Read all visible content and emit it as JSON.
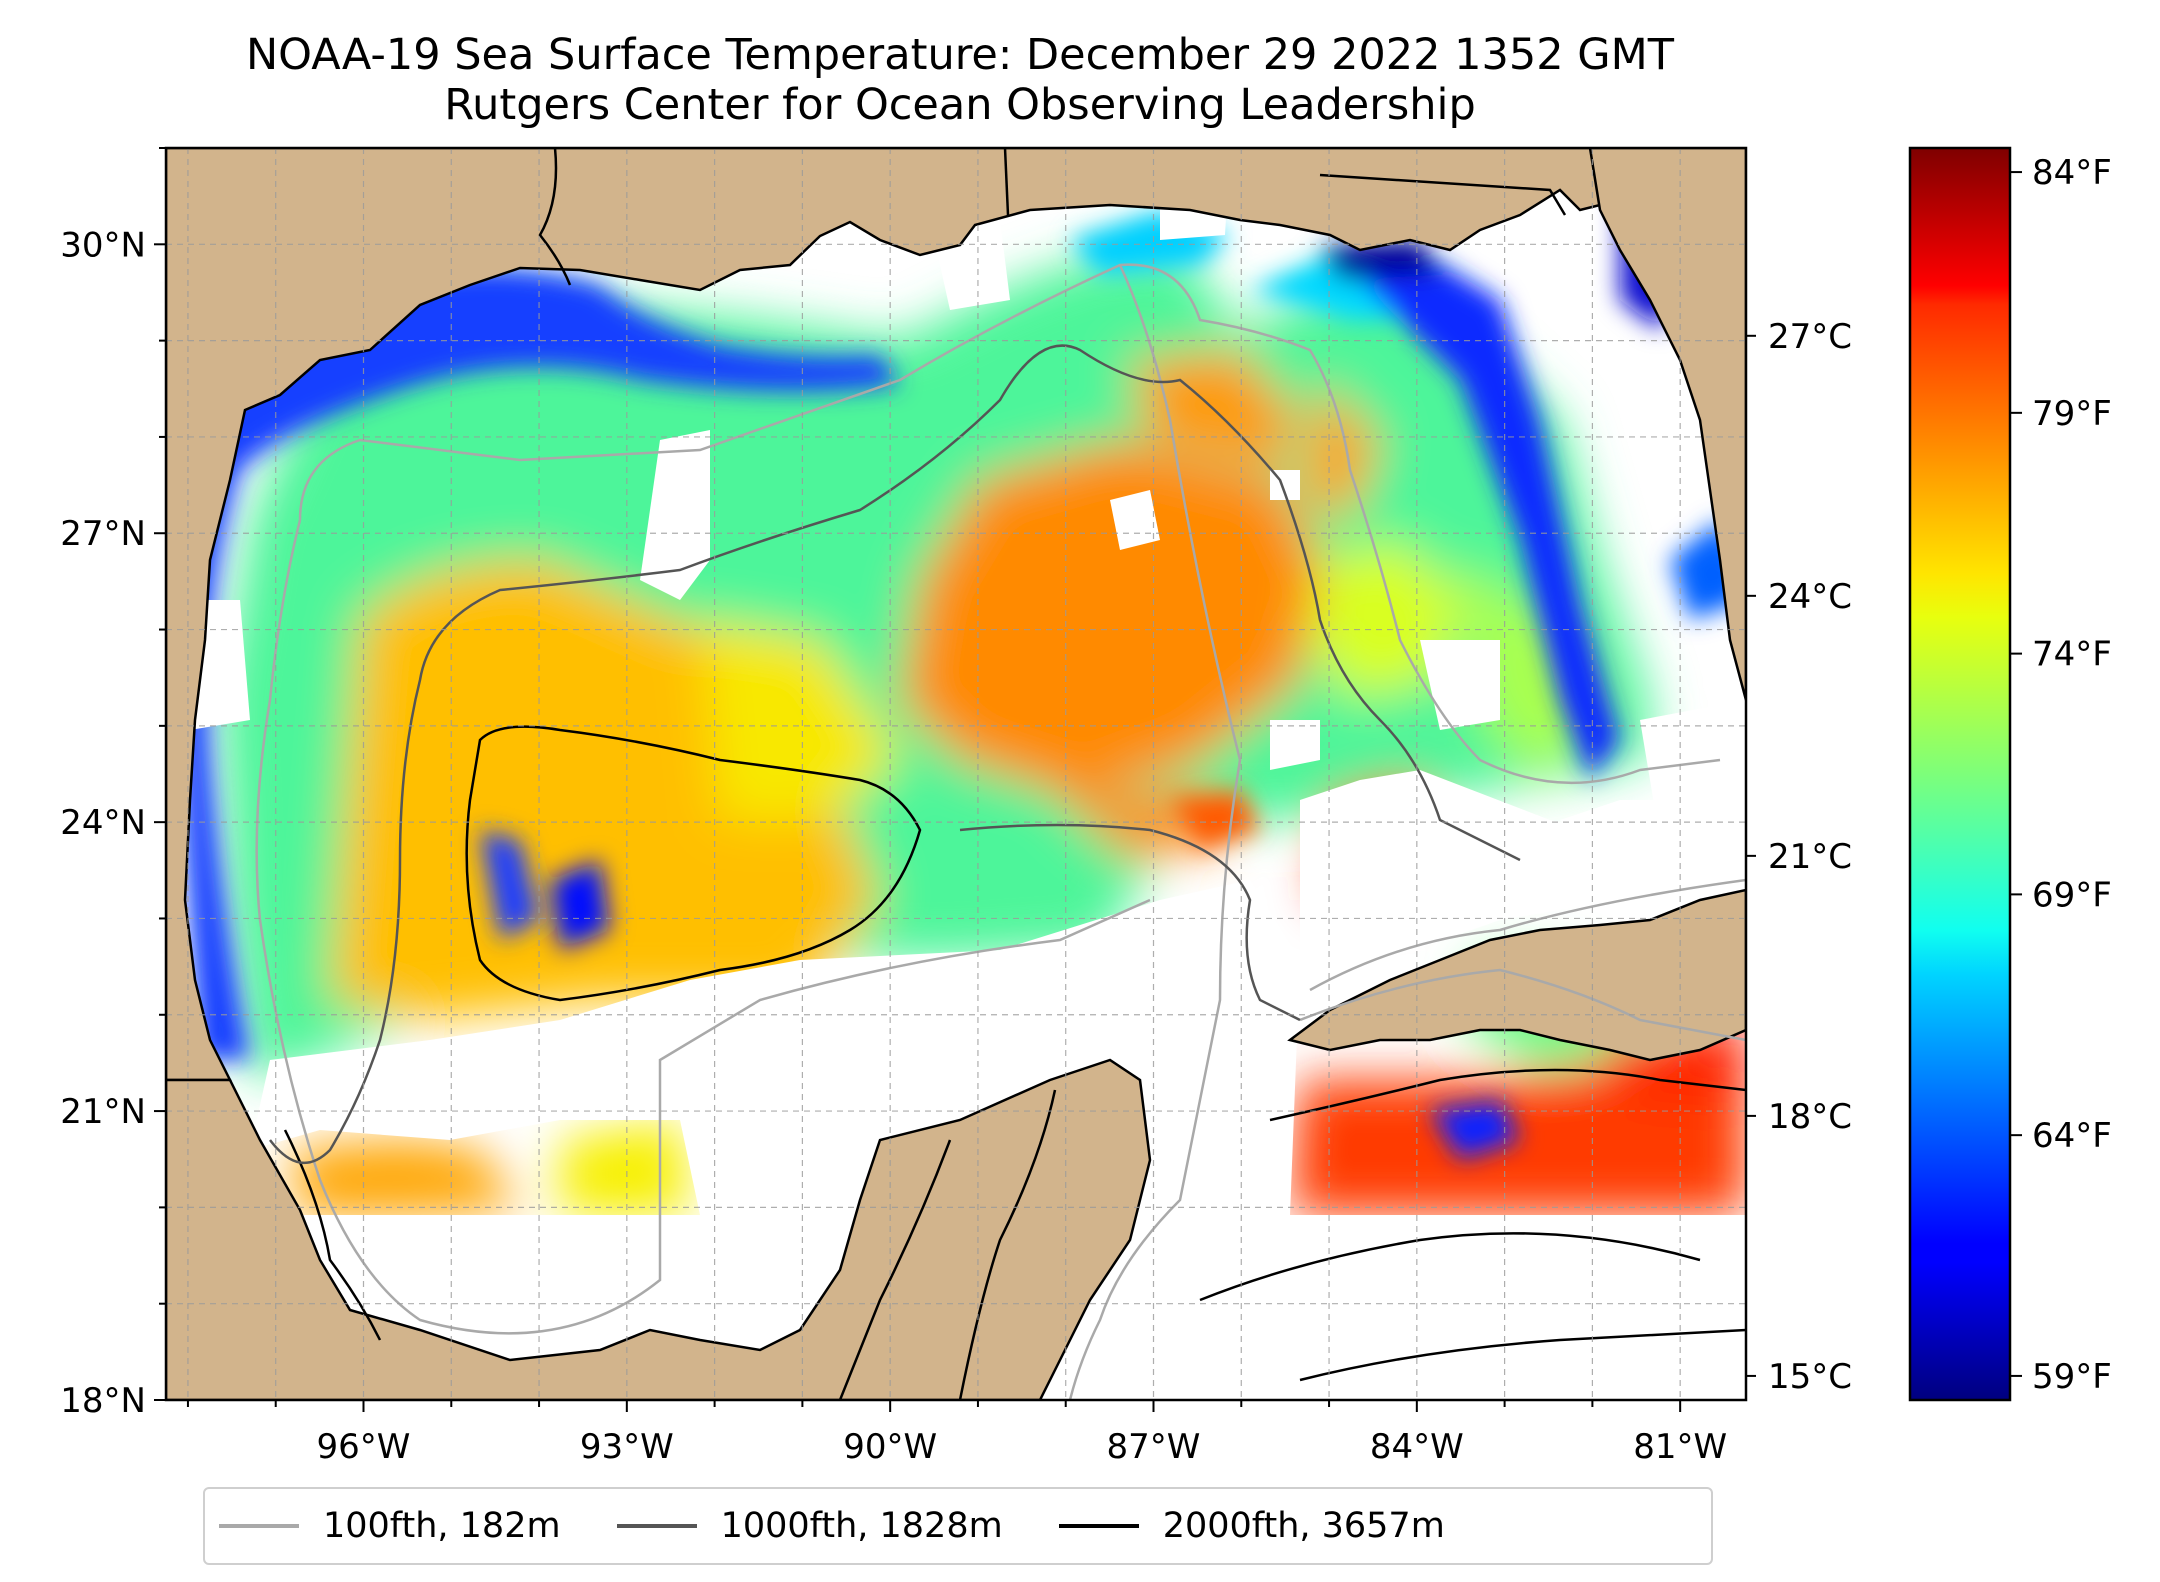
{
  "title": {
    "line1": "NOAA-19 Sea Surface Temperature: December 29 2022 1352 GMT",
    "line2": "Rutgers Center for Ocean Observing Leadership"
  },
  "map": {
    "lon_range": [
      -98.25,
      -80.25
    ],
    "lat_range": [
      18,
      31
    ],
    "lon_ticks": [
      {
        "value": -96,
        "label": "96°W"
      },
      {
        "value": -93,
        "label": "93°W"
      },
      {
        "value": -90,
        "label": "90°W"
      },
      {
        "value": -87,
        "label": "87°W"
      },
      {
        "value": -84,
        "label": "84°W"
      },
      {
        "value": -81,
        "label": "81°W"
      }
    ],
    "lat_ticks": [
      {
        "value": 18,
        "label": "18°N"
      },
      {
        "value": 21,
        "label": "21°N"
      },
      {
        "value": 24,
        "label": "24°N"
      },
      {
        "value": 27,
        "label": "27°N"
      },
      {
        "value": 30,
        "label": "30°N"
      }
    ],
    "celsius_ticks": [
      {
        "value": 15,
        "label": "15°C"
      },
      {
        "value": 18,
        "label": "18°C"
      },
      {
        "value": 21,
        "label": "21°C"
      },
      {
        "value": 24,
        "label": "24°C"
      },
      {
        "value": 27,
        "label": "27°C"
      }
    ],
    "land_color": "#d2b48c",
    "grid": true
  },
  "colorbar": {
    "colormap": "jet",
    "range_f": [
      58.5,
      84.5
    ],
    "ticks": [
      {
        "value": 59,
        "label": "59°F"
      },
      {
        "value": 64,
        "label": "64°F"
      },
      {
        "value": 69,
        "label": "69°F"
      },
      {
        "value": 74,
        "label": "74°F"
      },
      {
        "value": 79,
        "label": "79°F"
      },
      {
        "value": 84,
        "label": "84°F"
      }
    ]
  },
  "legend": {
    "placement": "below",
    "entries": [
      {
        "label": "100fth, 182m",
        "color": "#a9a9a9"
      },
      {
        "label": "1000fth, 1828m",
        "color": "#555555"
      },
      {
        "label": "2000fth, 3657m",
        "color": "#000000"
      }
    ]
  }
}
